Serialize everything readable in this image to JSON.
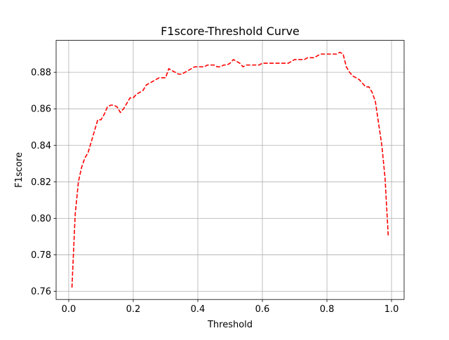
{
  "chart_data": {
    "type": "line",
    "title": "F1score-Threshold Curve",
    "xlabel": "Threshold",
    "ylabel": "F1score",
    "xlim": [
      -0.039,
      1.039
    ],
    "ylim": [
      0.7555,
      0.8975
    ],
    "xticks": [
      0.0,
      0.2,
      0.4,
      0.6,
      0.8,
      1.0
    ],
    "xtick_labels": [
      "0.0",
      "0.2",
      "0.4",
      "0.6",
      "0.8",
      "1.0"
    ],
    "yticks": [
      0.76,
      0.78,
      0.8,
      0.82,
      0.84,
      0.86,
      0.88
    ],
    "ytick_labels": [
      "0.76",
      "0.78",
      "0.80",
      "0.82",
      "0.84",
      "0.86",
      "0.88"
    ],
    "grid": true,
    "series": [
      {
        "color": "#ff0000",
        "linestyle": "dashed",
        "x": [
          0.01,
          0.02,
          0.03,
          0.04,
          0.05,
          0.06,
          0.07,
          0.08,
          0.09,
          0.1,
          0.11,
          0.12,
          0.13,
          0.14,
          0.15,
          0.16,
          0.17,
          0.18,
          0.19,
          0.2,
          0.21,
          0.22,
          0.23,
          0.24,
          0.25,
          0.26,
          0.27,
          0.28,
          0.29,
          0.3,
          0.31,
          0.32,
          0.33,
          0.34,
          0.35,
          0.36,
          0.37,
          0.38,
          0.39,
          0.4,
          0.41,
          0.42,
          0.43,
          0.44,
          0.45,
          0.46,
          0.47,
          0.48,
          0.49,
          0.5,
          0.51,
          0.52,
          0.53,
          0.54,
          0.55,
          0.56,
          0.57,
          0.58,
          0.59,
          0.6,
          0.61,
          0.62,
          0.63,
          0.64,
          0.65,
          0.66,
          0.67,
          0.68,
          0.69,
          0.7,
          0.71,
          0.72,
          0.73,
          0.74,
          0.75,
          0.76,
          0.77,
          0.78,
          0.79,
          0.8,
          0.81,
          0.82,
          0.83,
          0.84,
          0.85,
          0.86,
          0.87,
          0.88,
          0.89,
          0.9,
          0.91,
          0.92,
          0.93,
          0.94,
          0.95,
          0.96,
          0.97,
          0.98,
          0.99
        ],
        "y": [
          0.762,
          0.802,
          0.82,
          0.828,
          0.833,
          0.836,
          0.842,
          0.848,
          0.854,
          0.854,
          0.857,
          0.861,
          0.862,
          0.862,
          0.861,
          0.858,
          0.86,
          0.863,
          0.866,
          0.866,
          0.868,
          0.869,
          0.87,
          0.873,
          0.874,
          0.875,
          0.876,
          0.877,
          0.877,
          0.877,
          0.882,
          0.881,
          0.88,
          0.879,
          0.879,
          0.88,
          0.881,
          0.882,
          0.883,
          0.883,
          0.883,
          0.883,
          0.884,
          0.884,
          0.884,
          0.883,
          0.883,
          0.884,
          0.884,
          0.885,
          0.887,
          0.886,
          0.885,
          0.883,
          0.884,
          0.884,
          0.884,
          0.884,
          0.884,
          0.885,
          0.885,
          0.885,
          0.885,
          0.885,
          0.885,
          0.885,
          0.885,
          0.885,
          0.886,
          0.887,
          0.887,
          0.887,
          0.887,
          0.888,
          0.888,
          0.888,
          0.889,
          0.89,
          0.89,
          0.89,
          0.89,
          0.89,
          0.89,
          0.891,
          0.89,
          0.883,
          0.88,
          0.878,
          0.877,
          0.876,
          0.874,
          0.872,
          0.872,
          0.869,
          0.864,
          0.852,
          0.84,
          0.822,
          0.79
        ]
      }
    ]
  }
}
